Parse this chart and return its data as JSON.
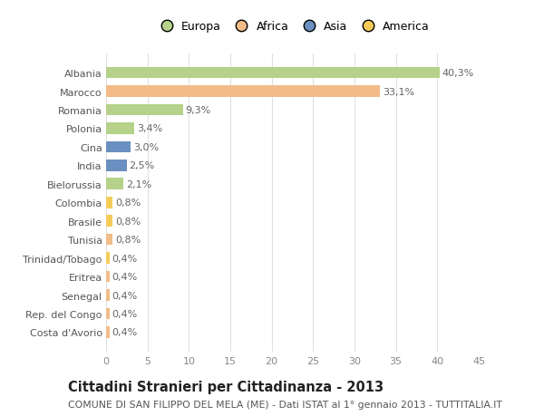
{
  "categories": [
    "Albania",
    "Marocco",
    "Romania",
    "Polonia",
    "Cina",
    "India",
    "Bielorussia",
    "Colombia",
    "Brasile",
    "Tunisia",
    "Trinidad/Tobago",
    "Eritrea",
    "Senegal",
    "Rep. del Congo",
    "Costa d'Avorio"
  ],
  "values": [
    40.3,
    33.1,
    9.3,
    3.4,
    3.0,
    2.5,
    2.1,
    0.8,
    0.8,
    0.8,
    0.4,
    0.4,
    0.4,
    0.4,
    0.4
  ],
  "labels": [
    "40,3%",
    "33,1%",
    "9,3%",
    "3,4%",
    "3,0%",
    "2,5%",
    "2,1%",
    "0,8%",
    "0,8%",
    "0,8%",
    "0,4%",
    "0,4%",
    "0,4%",
    "0,4%",
    "0,4%"
  ],
  "colors": [
    "#b5d18a",
    "#f2bb88",
    "#b5d18a",
    "#b5d18a",
    "#6a8fc0",
    "#6a8fc0",
    "#b5d18a",
    "#f5cc5a",
    "#f5cc5a",
    "#f2bb88",
    "#f5cc5a",
    "#f2bb88",
    "#f2bb88",
    "#f2bb88",
    "#f2bb88"
  ],
  "legend_labels": [
    "Europa",
    "Africa",
    "Asia",
    "America"
  ],
  "legend_colors": [
    "#b5d18a",
    "#f2bb88",
    "#6a8fc0",
    "#f5cc5a"
  ],
  "xlim": [
    0,
    45
  ],
  "xticks": [
    0,
    5,
    10,
    15,
    20,
    25,
    30,
    35,
    40,
    45
  ],
  "title_bold": "Cittadini Stranieri per Cittadinanza - 2013",
  "subtitle": "COMUNE DI SAN FILIPPO DEL MELA (ME) - Dati ISTAT al 1° gennaio 2013 - TUTTITALIA.IT",
  "bg_color": "#ffffff",
  "plot_bg_color": "#ffffff",
  "grid_color": "#e0e0e0",
  "bar_height": 0.62,
  "label_fontsize": 8.0,
  "tick_fontsize": 8.0,
  "title_fontsize": 10.5,
  "subtitle_fontsize": 7.8
}
